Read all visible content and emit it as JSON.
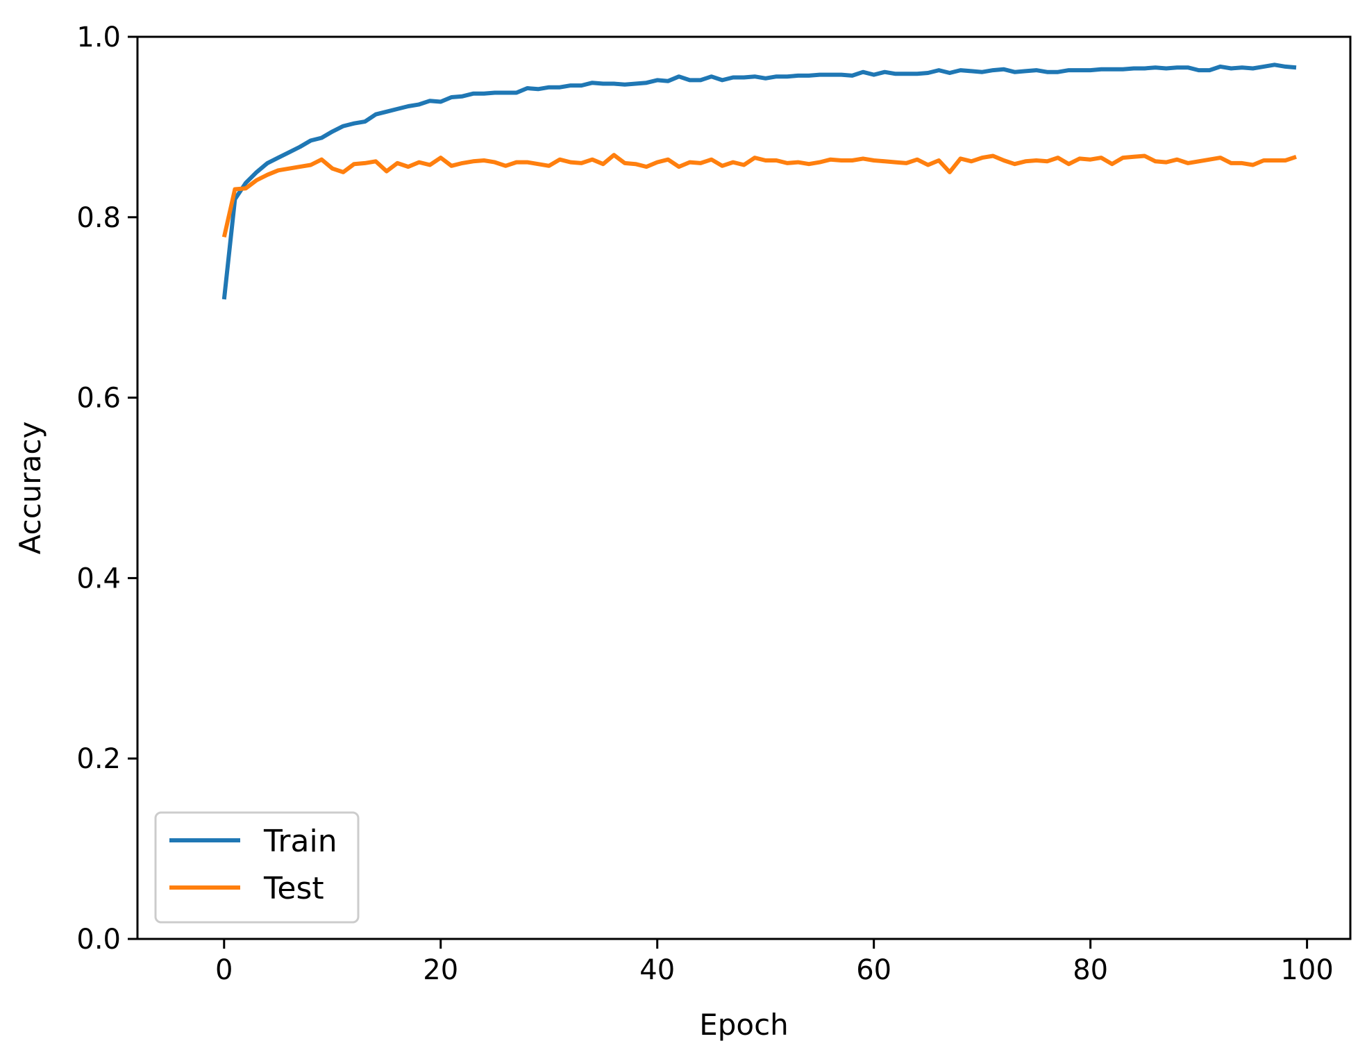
{
  "chart_data": {
    "type": "line",
    "title": "",
    "xlabel": "Epoch",
    "ylabel": "Accuracy",
    "xlim": [
      -8,
      104
    ],
    "ylim": [
      0.0,
      1.0
    ],
    "xticks": [
      0,
      20,
      40,
      60,
      80,
      100
    ],
    "xtick_labels": [
      "0",
      "20",
      "40",
      "60",
      "80",
      "100"
    ],
    "yticks": [
      0.0,
      0.2,
      0.4,
      0.6,
      0.8,
      1.0
    ],
    "ytick_labels": [
      "0.0",
      "0.2",
      "0.4",
      "0.6",
      "0.8",
      "1.0"
    ],
    "grid": false,
    "legend_position": "lower-left",
    "x": [
      0,
      1,
      2,
      3,
      4,
      5,
      6,
      7,
      8,
      9,
      10,
      11,
      12,
      13,
      14,
      15,
      16,
      17,
      18,
      19,
      20,
      21,
      22,
      23,
      24,
      25,
      26,
      27,
      28,
      29,
      30,
      31,
      32,
      33,
      34,
      35,
      36,
      37,
      38,
      39,
      40,
      41,
      42,
      43,
      44,
      45,
      46,
      47,
      48,
      49,
      50,
      51,
      52,
      53,
      54,
      55,
      56,
      57,
      58,
      59,
      60,
      61,
      62,
      63,
      64,
      65,
      66,
      67,
      68,
      69,
      70,
      71,
      72,
      73,
      74,
      75,
      76,
      77,
      78,
      79,
      80,
      81,
      82,
      83,
      84,
      85,
      86,
      87,
      88,
      89,
      90,
      91,
      92,
      93,
      94,
      95,
      96,
      97,
      98,
      99
    ],
    "series": [
      {
        "name": "Train",
        "color": "#1f77b4",
        "values": [
          0.709,
          0.82,
          0.838,
          0.85,
          0.86,
          0.866,
          0.872,
          0.878,
          0.885,
          0.888,
          0.895,
          0.901,
          0.904,
          0.906,
          0.914,
          0.917,
          0.92,
          0.923,
          0.925,
          0.929,
          0.928,
          0.933,
          0.934,
          0.937,
          0.937,
          0.938,
          0.938,
          0.938,
          0.943,
          0.942,
          0.944,
          0.944,
          0.946,
          0.946,
          0.949,
          0.948,
          0.948,
          0.947,
          0.948,
          0.949,
          0.952,
          0.951,
          0.956,
          0.952,
          0.952,
          0.956,
          0.952,
          0.955,
          0.955,
          0.956,
          0.954,
          0.956,
          0.956,
          0.957,
          0.957,
          0.958,
          0.958,
          0.958,
          0.957,
          0.961,
          0.958,
          0.961,
          0.959,
          0.959,
          0.959,
          0.96,
          0.963,
          0.96,
          0.963,
          0.962,
          0.961,
          0.963,
          0.964,
          0.961,
          0.962,
          0.963,
          0.961,
          0.961,
          0.963,
          0.963,
          0.963,
          0.964,
          0.964,
          0.964,
          0.965,
          0.965,
          0.966,
          0.965,
          0.966,
          0.966,
          0.963,
          0.963,
          0.967,
          0.965,
          0.966,
          0.965,
          0.967,
          0.969,
          0.967,
          0.966
        ]
      },
      {
        "name": "Test",
        "color": "#ff7f0e",
        "values": [
          0.778,
          0.831,
          0.832,
          0.841,
          0.847,
          0.852,
          0.854,
          0.856,
          0.858,
          0.864,
          0.854,
          0.85,
          0.859,
          0.86,
          0.862,
          0.851,
          0.86,
          0.856,
          0.861,
          0.858,
          0.866,
          0.857,
          0.86,
          0.862,
          0.863,
          0.861,
          0.857,
          0.861,
          0.861,
          0.859,
          0.857,
          0.864,
          0.861,
          0.86,
          0.864,
          0.859,
          0.869,
          0.86,
          0.859,
          0.856,
          0.861,
          0.864,
          0.856,
          0.861,
          0.86,
          0.864,
          0.857,
          0.861,
          0.858,
          0.866,
          0.863,
          0.863,
          0.86,
          0.861,
          0.859,
          0.861,
          0.864,
          0.863,
          0.863,
          0.865,
          0.863,
          0.862,
          0.861,
          0.86,
          0.864,
          0.858,
          0.863,
          0.85,
          0.865,
          0.862,
          0.866,
          0.868,
          0.863,
          0.859,
          0.862,
          0.863,
          0.862,
          0.866,
          0.859,
          0.865,
          0.864,
          0.866,
          0.859,
          0.866,
          0.867,
          0.868,
          0.862,
          0.861,
          0.864,
          0.86,
          0.862,
          0.864,
          0.866,
          0.86,
          0.86,
          0.858,
          0.863,
          0.863,
          0.863,
          0.867
        ]
      }
    ]
  }
}
